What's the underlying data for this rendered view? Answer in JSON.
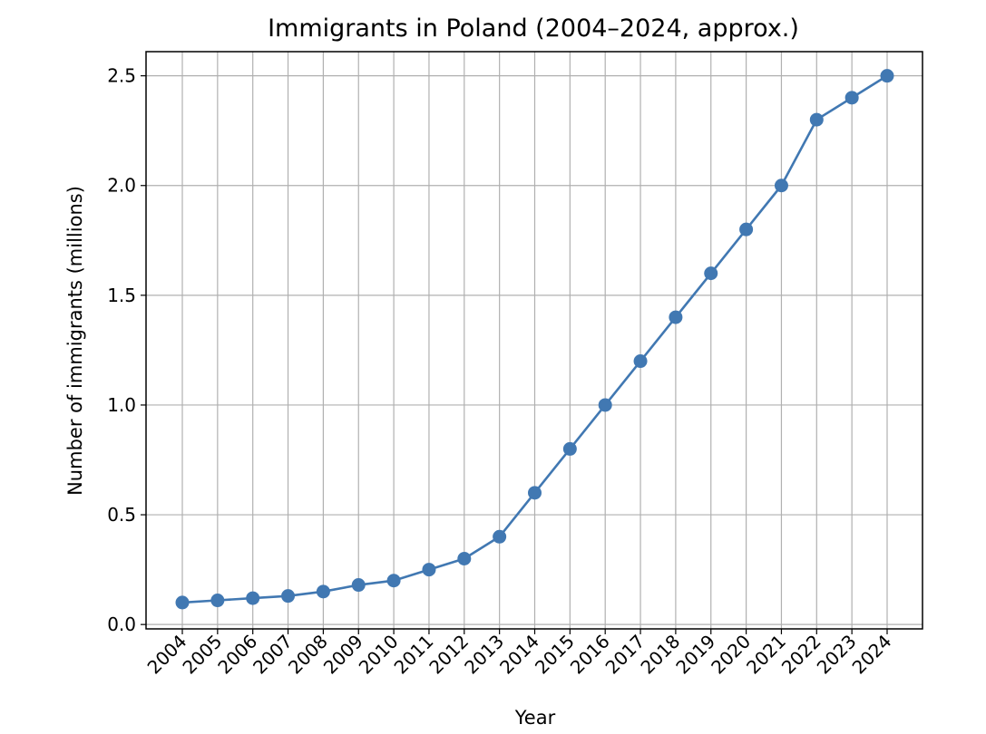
{
  "chart_data": {
    "type": "line",
    "title": "Immigrants in Poland (2004–2024, approx.)",
    "xlabel": "Year",
    "ylabel": "Number of immigrants (millions)",
    "categories": [
      "2004",
      "2005",
      "2006",
      "2007",
      "2008",
      "2009",
      "2010",
      "2011",
      "2012",
      "2013",
      "2014",
      "2015",
      "2016",
      "2017",
      "2018",
      "2019",
      "2020",
      "2021",
      "2022",
      "2023",
      "2024"
    ],
    "series": [
      {
        "name": "Immigrants",
        "color": "#4178b2",
        "marker": "circle",
        "values": [
          0.1,
          0.11,
          0.12,
          0.13,
          0.15,
          0.18,
          0.2,
          0.25,
          0.3,
          0.4,
          0.6,
          0.8,
          1.0,
          1.2,
          1.4,
          1.6,
          1.8,
          2.0,
          2.3,
          2.4,
          2.5
        ]
      }
    ],
    "ylim": [
      -0.02,
      2.61
    ],
    "yticks": [
      0.0,
      0.5,
      1.0,
      1.5,
      2.0,
      2.5
    ],
    "ytick_labels": [
      "0.0",
      "0.5",
      "1.0",
      "1.5",
      "2.0",
      "2.5"
    ],
    "grid": true,
    "legend": "none"
  }
}
